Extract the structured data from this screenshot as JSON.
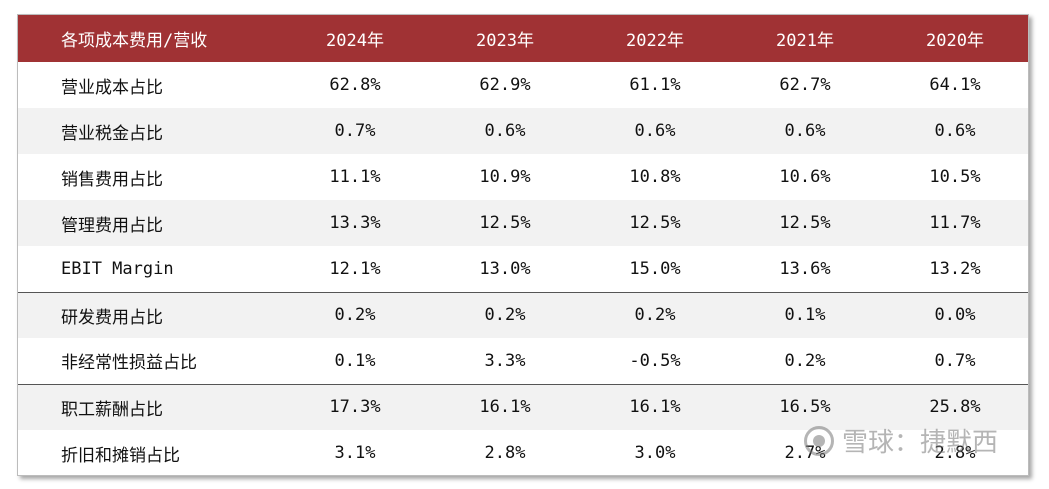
{
  "table": {
    "header": [
      "各项成本费用/营收",
      "2024年",
      "2023年",
      "2022年",
      "2021年",
      "2020年"
    ],
    "rows": [
      {
        "label": "营业成本占比",
        "values": [
          "62.8%",
          "62.9%",
          "61.1%",
          "62.7%",
          "64.1%"
        ]
      },
      {
        "label": "营业税金占比",
        "values": [
          "0.7%",
          "0.6%",
          "0.6%",
          "0.6%",
          "0.6%"
        ]
      },
      {
        "label": "销售费用占比",
        "values": [
          "11.1%",
          "10.9%",
          "10.8%",
          "10.6%",
          "10.5%"
        ]
      },
      {
        "label": "管理费用占比",
        "values": [
          "13.3%",
          "12.5%",
          "12.5%",
          "12.5%",
          "11.7%"
        ]
      },
      {
        "label": "EBIT Margin",
        "values": [
          "12.1%",
          "13.0%",
          "15.0%",
          "13.6%",
          "13.2%"
        ]
      },
      {
        "label": "研发费用占比",
        "values": [
          "0.2%",
          "0.2%",
          "0.2%",
          "0.1%",
          "0.0%"
        ]
      },
      {
        "label": "非经常性损益占比",
        "values": [
          "0.1%",
          "3.3%",
          "-0.5%",
          "0.2%",
          "0.7%"
        ]
      },
      {
        "label": "职工薪酬占比",
        "values": [
          "17.3%",
          "16.1%",
          "16.1%",
          "16.5%",
          "25.8%"
        ]
      },
      {
        "label": "折旧和摊销占比",
        "values": [
          "3.1%",
          "2.8%",
          "3.0%",
          "2.7%",
          "2.8%"
        ]
      }
    ]
  },
  "watermark": {
    "text": "雪球：捷默西",
    "icon": "snowball-logo-icon"
  },
  "colors": {
    "header_bg": "#a03234",
    "header_text": "#ffffff",
    "alt_row_bg": "#f2f2f2"
  }
}
